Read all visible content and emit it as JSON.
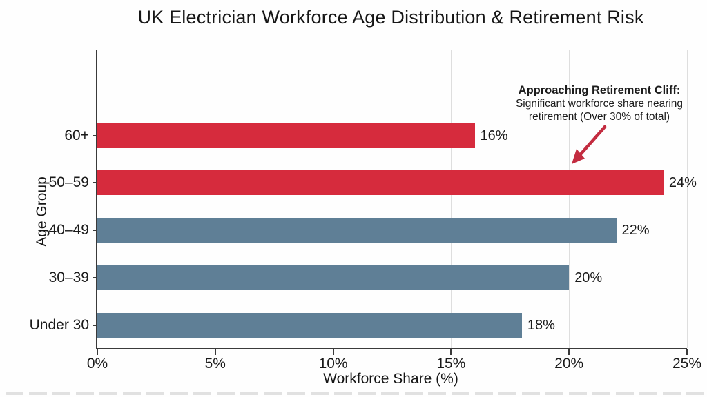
{
  "title": "UK Electrician Workforce Age Distribution & Retirement Risk",
  "chart_data": {
    "type": "bar",
    "orientation": "horizontal",
    "title": "UK Electrician Workforce Age Distribution & Retirement Risk",
    "categories": [
      "60+",
      "50–59",
      "40–49",
      "30–39",
      "Under 30"
    ],
    "values": [
      16,
      24,
      22,
      20,
      18
    ],
    "value_labels": [
      "16%",
      "24%",
      "22%",
      "20%",
      "18%"
    ],
    "bar_colors": [
      "#d62b3d",
      "#d62b3d",
      "#5f7f96",
      "#5f7f96",
      "#5f7f96"
    ],
    "xlabel": "Workforce Share (%)",
    "ylabel": "Age Group",
    "xlim": [
      0,
      25
    ],
    "x_ticks": [
      0,
      5,
      10,
      15,
      20,
      25
    ],
    "x_tick_labels": [
      "0%",
      "5%",
      "10%",
      "15%",
      "20%",
      "25%"
    ],
    "grid": "vertical-light",
    "legend": "none",
    "annotation": {
      "line1": "Approaching Retirement Cliff:",
      "line2": "Significant workforce share nearing",
      "line3": "retirement (Over 30% of total)",
      "arrow_points_to": "50–59 bar",
      "arrow_color": "#c32c40"
    },
    "palette": {
      "risk_red": "#d62b3d",
      "steel_blue": "#5f7f96",
      "axis_dark": "#3a3a3a",
      "grid_gray": "#dedede"
    }
  }
}
